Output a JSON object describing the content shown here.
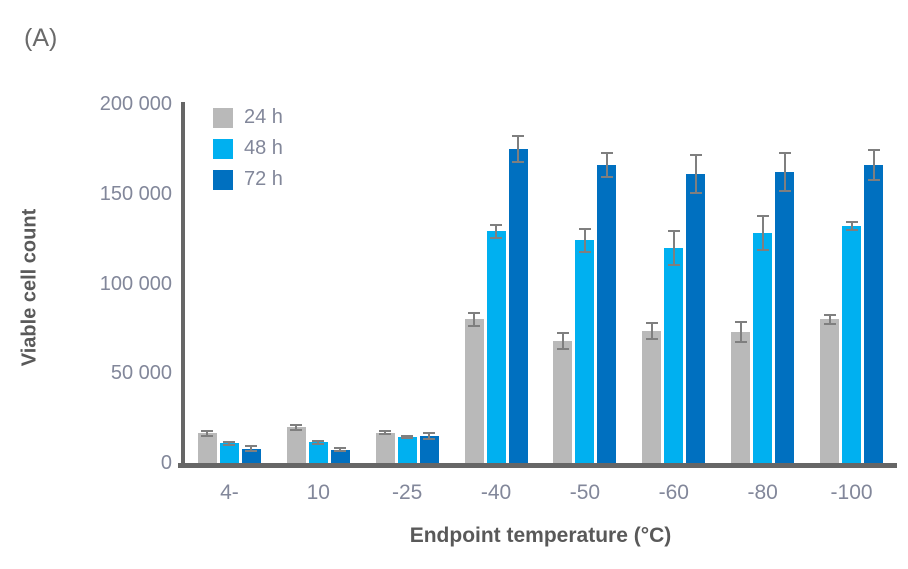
{
  "figure_label": "(A)",
  "colors": {
    "bar_24h": "#b9b9b9",
    "bar_48h": "#00b0f0",
    "bar_72h": "#0070c0",
    "axis_line": "#666666",
    "error_bar": "#7f7f7f",
    "tick_label": "#82879a",
    "title_label": "#595959",
    "background": "#ffffff"
  },
  "chart_data": {
    "type": "bar",
    "title": "",
    "xlabel": "Endpoint temperature (°C)",
    "ylabel": "Viable cell count",
    "categories": [
      "4-",
      "10",
      "-25",
      "-40",
      "-50",
      "-60",
      "-80",
      "-100"
    ],
    "series": [
      {
        "name": "24 h",
        "color": "#b9b9b9",
        "values": [
          16500,
          20000,
          17000,
          80000,
          68000,
          73500,
          73000,
          80000
        ],
        "errors": [
          2000,
          2000,
          1500,
          4000,
          5000,
          5000,
          6000,
          3000
        ]
      },
      {
        "name": "48 h",
        "color": "#00b0f0",
        "values": [
          11000,
          11500,
          14500,
          129000,
          124000,
          120000,
          128000,
          132000
        ],
        "errors": [
          1500,
          1500,
          1000,
          4000,
          7000,
          10000,
          10000,
          3000
        ]
      },
      {
        "name": "72 h",
        "color": "#0070c0",
        "values": [
          8000,
          7500,
          15000,
          175000,
          166000,
          161000,
          162000,
          166000
        ],
        "errors": [
          2000,
          1500,
          2000,
          8000,
          7000,
          11000,
          11000,
          9000
        ]
      }
    ],
    "ylim": [
      0,
      200000
    ],
    "yticks": [
      {
        "value": 0,
        "label": "0"
      },
      {
        "value": 50000,
        "label": "50 000"
      },
      {
        "value": 100000,
        "label": "100 000"
      },
      {
        "value": 150000,
        "label": "150 000"
      },
      {
        "value": 200000,
        "label": "200 000"
      }
    ],
    "grid": false,
    "legend_position": "top-left-inside",
    "error_bars": true
  }
}
